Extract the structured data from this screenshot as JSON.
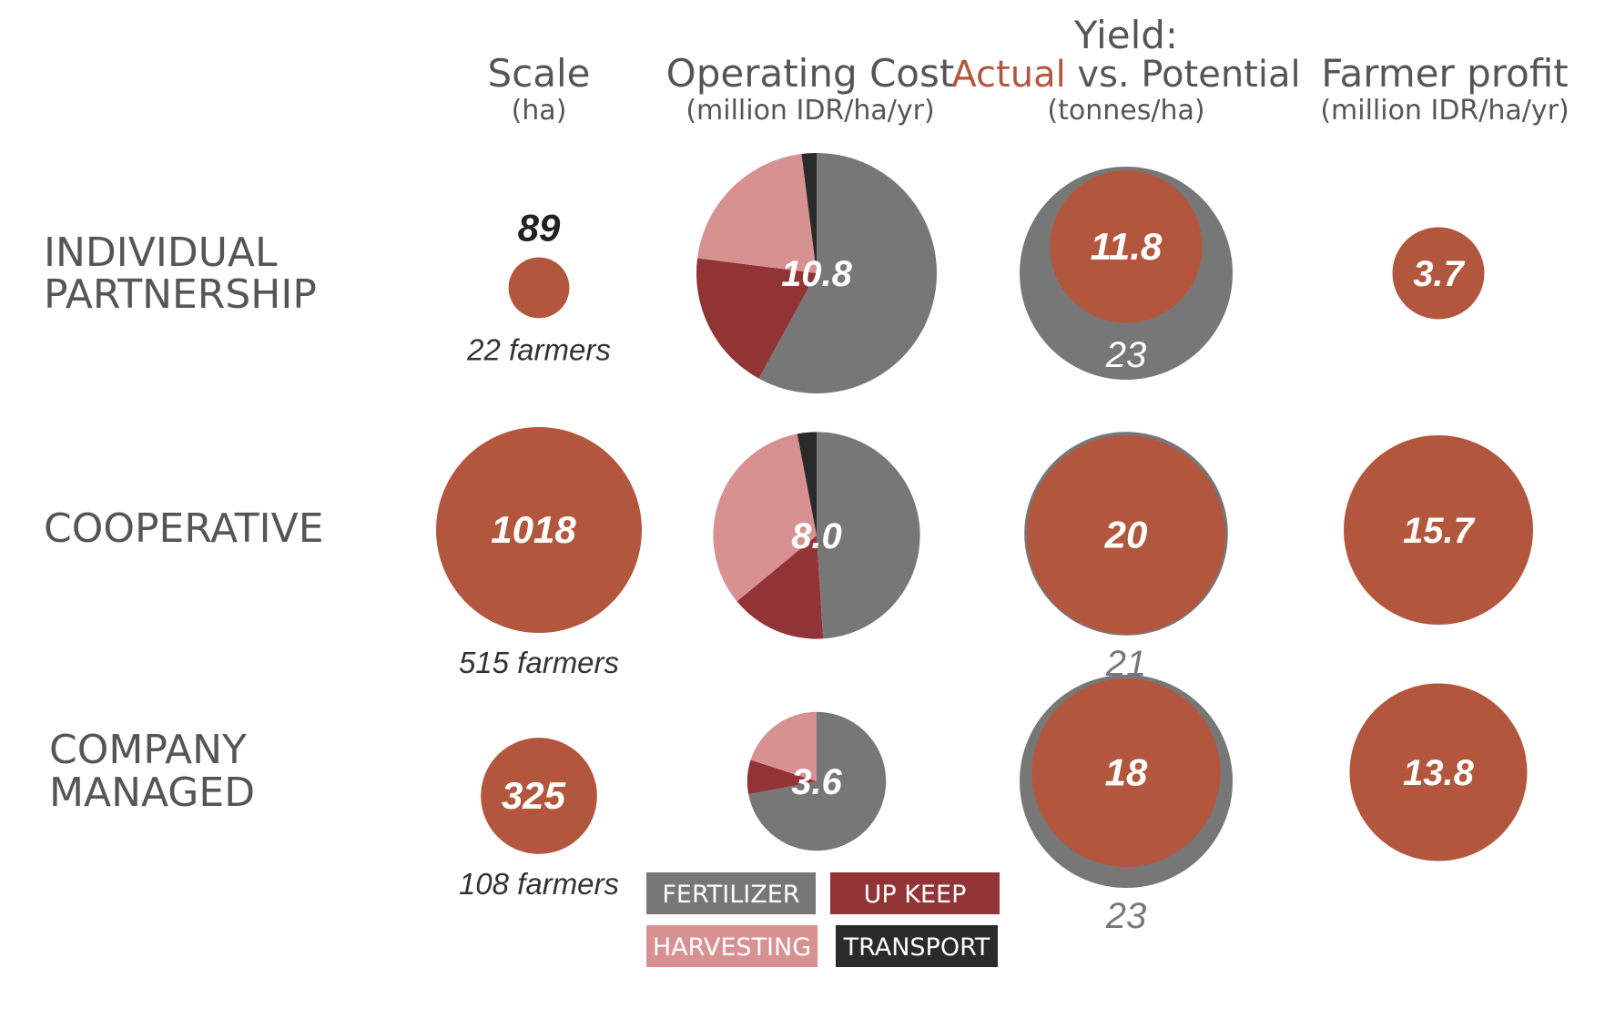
{
  "colors": {
    "actual": "#b3563e",
    "potential": "#777777",
    "fertilizer": "#777777",
    "upkeep": "#923436",
    "harvesting": "#d89191",
    "transport": "#2a2a2a",
    "header_text": "#555555",
    "scale_value_text": "#222222"
  },
  "headers": {
    "scale": {
      "title": "Scale",
      "unit": "(ha)"
    },
    "operating_cost": {
      "title": "Operating Cost",
      "unit": "(million IDR/ha/yr)"
    },
    "yield": {
      "title": "Yield:",
      "actual": "Actual",
      "vs": " vs. Potential",
      "unit": "(tonnes/ha)"
    },
    "farmer_profit": {
      "title": "Farmer profit",
      "unit": "(million IDR/ha/yr)"
    }
  },
  "rows": [
    {
      "label_lines": [
        "INDIVIDUAL",
        "PARTNERSHIP"
      ]
    },
    {
      "label_lines": [
        "COOPERATIVE"
      ]
    },
    {
      "label_lines": [
        "COMPANY",
        "MANAGED"
      ]
    }
  ],
  "legend": [
    {
      "label": "FERTILIZER",
      "color_key": "fertilizer"
    },
    {
      "label": "UP KEEP",
      "color_key": "upkeep"
    },
    {
      "label": "HARVESTING",
      "color_key": "harvesting"
    },
    {
      "label": "TRANSPORT",
      "color_key": "transport"
    }
  ],
  "chart_data": {
    "type": "bubble-matrix",
    "categories": [
      "INDIVIDUAL PARTNERSHIP",
      "COOPERATIVE",
      "COMPANY MANAGED"
    ],
    "scale": [
      {
        "value": 89,
        "value_label": "89",
        "farmers_label": "22 farmers"
      },
      {
        "value": 1018,
        "value_label": "1018",
        "farmers_label": "515 farmers"
      },
      {
        "value": 325,
        "value_label": "325",
        "farmers_label": "108 farmers"
      }
    ],
    "operating_cost": [
      {
        "total": 10.8,
        "total_label": "10.8",
        "shares": {
          "fertilizer": 0.58,
          "upkeep": 0.19,
          "harvesting": 0.21,
          "transport": 0.02
        }
      },
      {
        "total": 8.0,
        "total_label": "8.0",
        "shares": {
          "fertilizer": 0.49,
          "upkeep": 0.15,
          "harvesting": 0.33,
          "transport": 0.03
        }
      },
      {
        "total": 3.6,
        "total_label": "3.6",
        "shares": {
          "fertilizer": 0.72,
          "upkeep": 0.08,
          "harvesting": 0.2,
          "transport": 0.0
        }
      }
    ],
    "yield": [
      {
        "actual": 11.8,
        "actual_label": "11.8",
        "potential": 23,
        "potential_label": "23"
      },
      {
        "actual": 20,
        "actual_label": "20",
        "potential": 21,
        "potential_label": "21"
      },
      {
        "actual": 18,
        "actual_label": "18",
        "potential": 23,
        "potential_label": "23"
      }
    ],
    "farmer_profit": [
      {
        "value": 3.7,
        "value_label": "3.7"
      },
      {
        "value": 15.7,
        "value_label": "15.7"
      },
      {
        "value": 13.8,
        "value_label": "13.8"
      }
    ]
  }
}
